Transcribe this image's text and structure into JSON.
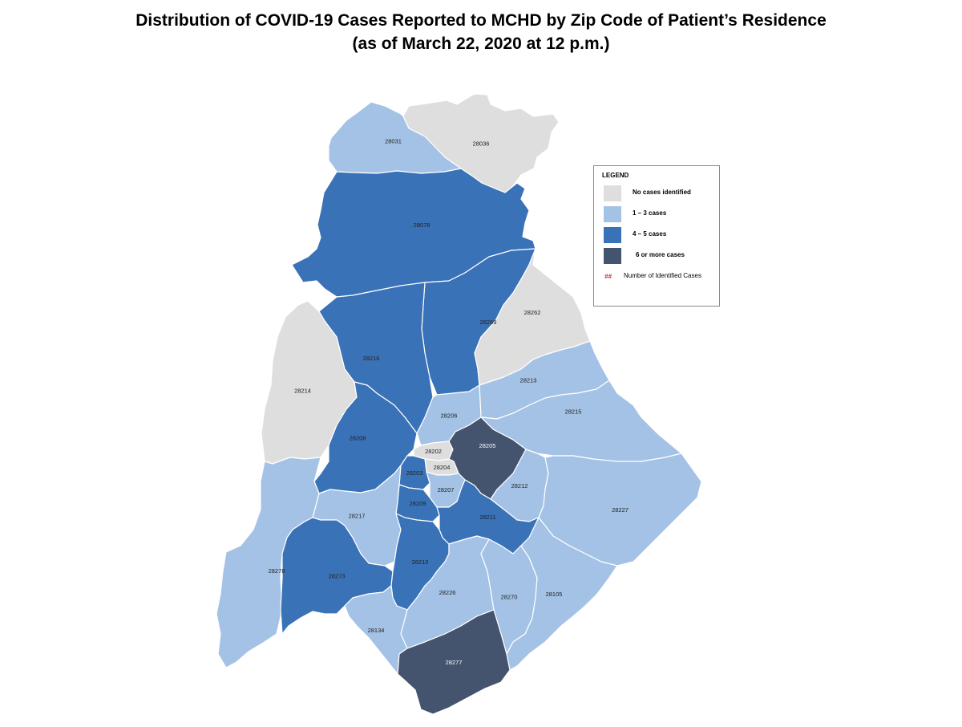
{
  "title": {
    "line1": "Distribution of COVID-19 Cases Reported to MCHD by Zip Code of Patient’s Residence",
    "line2": "(as of March 22, 2020 at 12 p.m.)"
  },
  "colors": {
    "none": "#dedede",
    "low": "#a4c2e6",
    "mid": "#3a72b8",
    "high": "#44546e"
  },
  "legend": {
    "title": "LEGEND",
    "items": [
      {
        "key": "none",
        "label": "No cases identified"
      },
      {
        "key": "low",
        "label": "1 – 3 cases"
      },
      {
        "key": "mid",
        "label": "4 – 5 cases"
      },
      {
        "key": "high",
        "label": "6 or more cases"
      }
    ],
    "count_symbol": "##",
    "count_label": "Number of Identified Cases"
  },
  "zip_codes": [
    {
      "zip": "28031",
      "category": "low"
    },
    {
      "zip": "28036",
      "category": "none"
    },
    {
      "zip": "28078",
      "category": "mid"
    },
    {
      "zip": "28269",
      "category": "mid"
    },
    {
      "zip": "28262",
      "category": "none"
    },
    {
      "zip": "28216",
      "category": "mid"
    },
    {
      "zip": "28214",
      "category": "none"
    },
    {
      "zip": "28213",
      "category": "low"
    },
    {
      "zip": "28206",
      "category": "low"
    },
    {
      "zip": "28215",
      "category": "low"
    },
    {
      "zip": "28208",
      "category": "mid"
    },
    {
      "zip": "28202",
      "category": "none"
    },
    {
      "zip": "28205",
      "category": "high"
    },
    {
      "zip": "28204",
      "category": "none"
    },
    {
      "zip": "28203",
      "category": "mid"
    },
    {
      "zip": "28207",
      "category": "low"
    },
    {
      "zip": "28212",
      "category": "low"
    },
    {
      "zip": "28227",
      "category": "low"
    },
    {
      "zip": "28209",
      "category": "mid"
    },
    {
      "zip": "28217",
      "category": "low"
    },
    {
      "zip": "28211",
      "category": "mid"
    },
    {
      "zip": "28278",
      "category": "low"
    },
    {
      "zip": "28273",
      "category": "mid"
    },
    {
      "zip": "28210",
      "category": "mid"
    },
    {
      "zip": "28270",
      "category": "low"
    },
    {
      "zip": "28105",
      "category": "low"
    },
    {
      "zip": "28226",
      "category": "low"
    },
    {
      "zip": "28134",
      "category": "low"
    },
    {
      "zip": "28277",
      "category": "high"
    }
  ]
}
